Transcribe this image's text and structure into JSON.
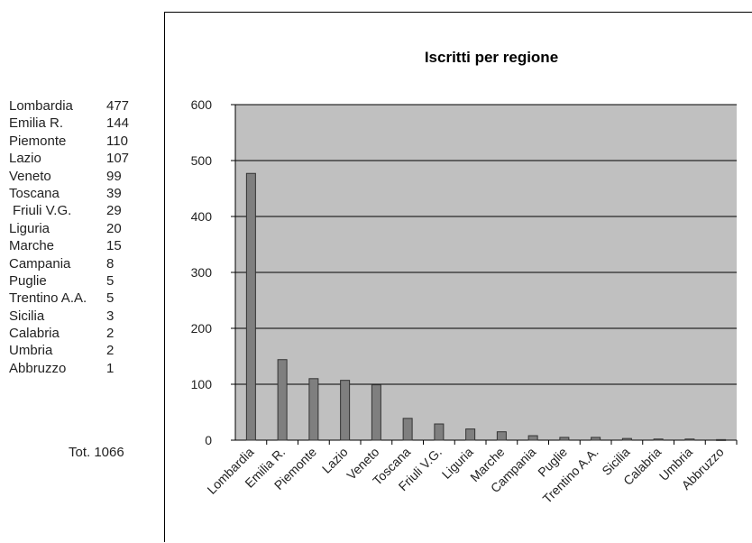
{
  "table": {
    "rows": [
      {
        "region": "Lombardia",
        "value": "477"
      },
      {
        "region": "Emilia R.",
        "value": "144"
      },
      {
        "region": "Piemonte",
        "value": "110"
      },
      {
        "region": "Lazio",
        "value": "107"
      },
      {
        "region": "Veneto",
        "value": "99"
      },
      {
        "region": "Toscana",
        "value": "39"
      },
      {
        "region": "Friuli V.G.",
        "value": "29"
      },
      {
        "region": "Liguria",
        "value": "20"
      },
      {
        "region": "Marche",
        "value": "15"
      },
      {
        "region": "Campania",
        "value": "8"
      },
      {
        "region": "Puglie",
        "value": "5"
      },
      {
        "region": "Trentino A.A.",
        "value": "5"
      },
      {
        "region": "Sicilia",
        "value": "3"
      },
      {
        "region": "Calabria",
        "value": "2"
      },
      {
        "region": "Umbria",
        "value": "2"
      },
      {
        "region": "Abbruzzo",
        "value": "1"
      }
    ],
    "total_label": "Tot. 1066"
  },
  "chart_data": {
    "type": "bar",
    "title": "Iscritti per regione",
    "categories": [
      "Lombardia",
      "Emilia R.",
      "Piemonte",
      "Lazio",
      "Veneto",
      "Toscana",
      "Friuli V.G.",
      "Liguria",
      "Marche",
      "Campania",
      "Puglie",
      "Trentino A.A.",
      "Sicilia",
      "Calabria",
      "Umbria",
      "Abbruzzo"
    ],
    "values": [
      477,
      144,
      110,
      107,
      99,
      39,
      29,
      20,
      15,
      8,
      5,
      5,
      3,
      2,
      2,
      1
    ],
    "ylim": [
      0,
      600
    ],
    "yticks": [
      0,
      100,
      200,
      300,
      400,
      500,
      600
    ],
    "xlabel": "",
    "ylabel": "",
    "grid": true,
    "legend": "none",
    "colors": {
      "plot_bg": "#c0c0c0",
      "bar": "#7f7f7f",
      "bar_stroke": "#333333",
      "grid": "#000000"
    }
  }
}
